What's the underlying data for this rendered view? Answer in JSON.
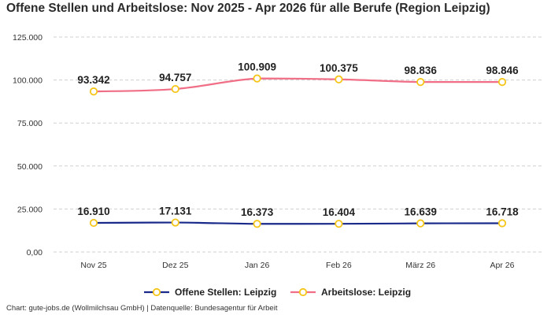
{
  "title": "Offene Stellen und Arbeitslose: Nov 2025 - Apr 2026 für alle Berufe (Region Leipzig)",
  "footer": "Chart: gute-jobs.de (Wollmilchsau GmbH) | Datenquelle: Bundesagentur für Arbeit",
  "colors": {
    "offene_stellen": "#1a2a8a",
    "arbeitslose": "#f06e86",
    "marker_stroke": "#f5c518",
    "grid": "#cfcfcf"
  },
  "chart_data": {
    "type": "line",
    "title": "Offene Stellen und Arbeitslose: Nov 2025 - Apr 2026 für alle Berufe (Region Leipzig)",
    "categories": [
      "Nov 25",
      "Dez 25",
      "Jan 26",
      "Feb 26",
      "März 26",
      "Apr 26"
    ],
    "series": [
      {
        "name": "Offene Stellen: Leipzig",
        "values": [
          16910,
          17131,
          16373,
          16404,
          16639,
          16718
        ],
        "labels": [
          "16.910",
          "17.131",
          "16.373",
          "16.404",
          "16.639",
          "16.718"
        ]
      },
      {
        "name": "Arbeitslose: Leipzig",
        "values": [
          93342,
          94757,
          100909,
          100375,
          98836,
          98846
        ],
        "labels": [
          "93.342",
          "94.757",
          "100.909",
          "100.375",
          "98.836",
          "98.846"
        ]
      }
    ],
    "ylim": [
      0,
      125000
    ],
    "yticks": [
      {
        "value": 0,
        "label": "0,00"
      },
      {
        "value": 25000,
        "label": "25.000"
      },
      {
        "value": 50000,
        "label": "50.000"
      },
      {
        "value": 75000,
        "label": "75.000"
      },
      {
        "value": 100000,
        "label": "100.000"
      },
      {
        "value": 125000,
        "label": "125.000"
      }
    ],
    "grid": true,
    "legend": "bottom"
  }
}
